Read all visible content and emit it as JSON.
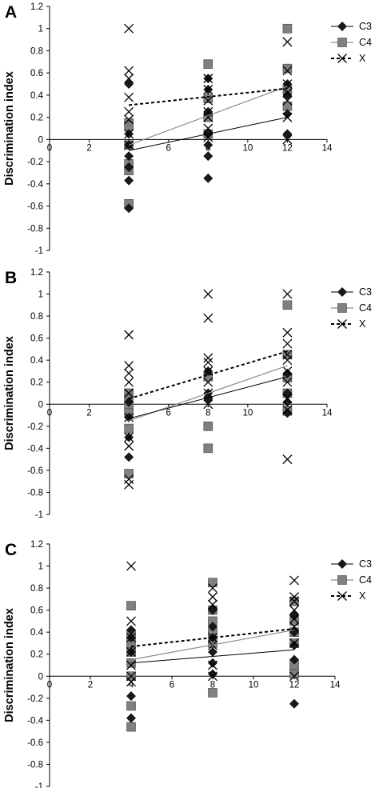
{
  "figure": {
    "ylabel": "Discrimination index",
    "x_ticks": [
      "0",
      "2",
      "4",
      "6",
      "8",
      "10",
      "12",
      "14"
    ],
    "y_ticks": [
      "1.2",
      "1",
      "0.8",
      "0.6",
      "0.4",
      "0.2",
      "0",
      "-0.2",
      "-0.4",
      "-0.6",
      "-0.8",
      "-1"
    ],
    "legend": [
      "C3",
      "C4",
      "X"
    ],
    "colors": {
      "C3": "#1a1a1a",
      "C4": "#808080",
      "X": "#000000",
      "C4_line": "#8c8c8c"
    }
  },
  "chart_data": [
    {
      "type": "scatter",
      "panel": "A",
      "xlim": [
        0,
        14
      ],
      "ylim": [
        -1,
        1.2
      ],
      "series": [
        {
          "name": "C3",
          "marker": "diamond",
          "points": [
            [
              4,
              0.5
            ],
            [
              4,
              -0.15
            ],
            [
              4,
              -0.25
            ],
            [
              4,
              -0.37
            ],
            [
              4,
              -0.62
            ],
            [
              4,
              -0.05
            ],
            [
              4,
              0.05
            ],
            [
              8,
              0.55
            ],
            [
              8,
              0.45
            ],
            [
              8,
              0.25
            ],
            [
              8,
              0.05
            ],
            [
              8,
              -0.05
            ],
            [
              8,
              -0.15
            ],
            [
              8,
              -0.35
            ],
            [
              12,
              0.23
            ],
            [
              12,
              0.05
            ],
            [
              12,
              0.4
            ],
            [
              12,
              0.5
            ]
          ],
          "trend": [
            [
              4,
              -0.1
            ],
            [
              12,
              0.2
            ]
          ]
        },
        {
          "name": "C4",
          "marker": "square",
          "points": [
            [
              4,
              0.15
            ],
            [
              4,
              0.12
            ],
            [
              4,
              -0.05
            ],
            [
              4,
              -0.22
            ],
            [
              4,
              -0.28
            ],
            [
              4,
              -0.58
            ],
            [
              8,
              0.68
            ],
            [
              8,
              0.37
            ],
            [
              8,
              0.2
            ],
            [
              8,
              0.05
            ],
            [
              12,
              1.0
            ],
            [
              12,
              0.64
            ],
            [
              12,
              0.45
            ],
            [
              12,
              0.3
            ]
          ],
          "trend": [
            [
              4,
              -0.05
            ],
            [
              12,
              0.48
            ]
          ]
        },
        {
          "name": "X",
          "marker": "x",
          "points": [
            [
              4,
              1.0
            ],
            [
              4,
              0.62
            ],
            [
              4,
              0.55
            ],
            [
              4,
              0.38
            ],
            [
              4,
              0.25
            ],
            [
              4,
              0.18
            ],
            [
              4,
              0.05
            ],
            [
              4,
              -0.05
            ],
            [
              8,
              0.55
            ],
            [
              8,
              0.45
            ],
            [
              8,
              0.35
            ],
            [
              8,
              0.25
            ],
            [
              8,
              0.2
            ],
            [
              8,
              0.1
            ],
            [
              8,
              0.02
            ],
            [
              12,
              0.88
            ],
            [
              12,
              0.62
            ],
            [
              12,
              0.5
            ],
            [
              12,
              0.42
            ],
            [
              12,
              0.35
            ],
            [
              12,
              0.2
            ],
            [
              12,
              0.0
            ]
          ],
          "trend": [
            [
              4,
              0.31
            ],
            [
              12,
              0.46
            ]
          ]
        }
      ]
    },
    {
      "type": "scatter",
      "panel": "B",
      "xlim": [
        0,
        14
      ],
      "ylim": [
        -1,
        1.2
      ],
      "series": [
        {
          "name": "C3",
          "marker": "diamond",
          "points": [
            [
              4,
              0.02
            ],
            [
              4,
              -0.12
            ],
            [
              4,
              -0.3
            ],
            [
              4,
              -0.48
            ],
            [
              8,
              0.3
            ],
            [
              8,
              0.1
            ],
            [
              8,
              0.05
            ],
            [
              12,
              0.28
            ],
            [
              12,
              0.1
            ],
            [
              12,
              0.02
            ],
            [
              12,
              -0.08
            ]
          ],
          "trend": [
            [
              4,
              -0.13
            ],
            [
              12,
              0.25
            ]
          ]
        },
        {
          "name": "C4",
          "marker": "square",
          "points": [
            [
              4,
              0.1
            ],
            [
              4,
              0.05
            ],
            [
              4,
              -0.02
            ],
            [
              4,
              -0.08
            ],
            [
              4,
              -0.22
            ],
            [
              4,
              -0.63
            ],
            [
              8,
              0.25
            ],
            [
              8,
              -0.2
            ],
            [
              8,
              -0.4
            ],
            [
              12,
              0.9
            ],
            [
              12,
              0.45
            ],
            [
              12,
              0.24
            ],
            [
              12,
              0.1
            ],
            [
              12,
              -0.06
            ]
          ],
          "trend": [
            [
              4,
              -0.15
            ],
            [
              12,
              0.35
            ]
          ]
        },
        {
          "name": "X",
          "marker": "x",
          "points": [
            [
              4,
              0.63
            ],
            [
              4,
              0.35
            ],
            [
              4,
              0.28
            ],
            [
              4,
              0.2
            ],
            [
              4,
              0.1
            ],
            [
              4,
              -0.12
            ],
            [
              4,
              -0.3
            ],
            [
              4,
              -0.38
            ],
            [
              4,
              -0.68
            ],
            [
              4,
              -0.73
            ],
            [
              8,
              1.0
            ],
            [
              8,
              0.78
            ],
            [
              8,
              0.42
            ],
            [
              8,
              0.38
            ],
            [
              8,
              0.3
            ],
            [
              8,
              0.2
            ],
            [
              8,
              0.1
            ],
            [
              8,
              0.0
            ],
            [
              12,
              1.0
            ],
            [
              12,
              0.65
            ],
            [
              12,
              0.55
            ],
            [
              12,
              0.45
            ],
            [
              12,
              0.4
            ],
            [
              12,
              0.3
            ],
            [
              12,
              0.2
            ],
            [
              12,
              0.05
            ],
            [
              12,
              -0.05
            ],
            [
              12,
              -0.5
            ]
          ],
          "trend": [
            [
              4,
              0.05
            ],
            [
              12,
              0.48
            ]
          ]
        }
      ]
    },
    {
      "type": "scatter",
      "panel": "C",
      "xlim": [
        0,
        14
      ],
      "ylim": [
        -1,
        1.2
      ],
      "series": [
        {
          "name": "C3",
          "marker": "diamond",
          "points": [
            [
              4,
              0.42
            ],
            [
              4,
              0.35
            ],
            [
              4,
              0.22
            ],
            [
              4,
              -0.18
            ],
            [
              4,
              -0.38
            ],
            [
              8,
              0.6
            ],
            [
              8,
              0.45
            ],
            [
              8,
              0.35
            ],
            [
              8,
              0.22
            ],
            [
              8,
              0.12
            ],
            [
              8,
              0.02
            ],
            [
              12,
              0.55
            ],
            [
              12,
              0.4
            ],
            [
              12,
              0.28
            ],
            [
              12,
              0.15
            ],
            [
              12,
              -0.25
            ]
          ],
          "trend": [
            [
              4,
              0.12
            ],
            [
              12,
              0.24
            ]
          ]
        },
        {
          "name": "C4",
          "marker": "square",
          "points": [
            [
              4,
              0.64
            ],
            [
              4,
              0.38
            ],
            [
              4,
              0.3
            ],
            [
              4,
              0.22
            ],
            [
              4,
              0.12
            ],
            [
              4,
              0.0
            ],
            [
              4,
              -0.27
            ],
            [
              4,
              -0.46
            ],
            [
              8,
              0.85
            ],
            [
              8,
              0.6
            ],
            [
              8,
              0.5
            ],
            [
              8,
              0.4
            ],
            [
              8,
              0.3
            ],
            [
              8,
              -0.15
            ],
            [
              12,
              0.68
            ],
            [
              12,
              0.5
            ],
            [
              12,
              0.4
            ],
            [
              12,
              0.3
            ],
            [
              12,
              0.1
            ],
            [
              12,
              0.02
            ]
          ],
          "trend": [
            [
              4,
              0.15
            ],
            [
              12,
              0.42
            ]
          ]
        },
        {
          "name": "X",
          "marker": "x",
          "points": [
            [
              4,
              1.0
            ],
            [
              4,
              0.5
            ],
            [
              4,
              0.35
            ],
            [
              4,
              0.22
            ],
            [
              4,
              0.1
            ],
            [
              4,
              0.0
            ],
            [
              4,
              -0.05
            ],
            [
              8,
              0.8
            ],
            [
              8,
              0.72
            ],
            [
              8,
              0.65
            ],
            [
              8,
              0.35
            ],
            [
              8,
              0.28
            ],
            [
              8,
              0.1
            ],
            [
              8,
              0.0
            ],
            [
              12,
              0.87
            ],
            [
              12,
              0.72
            ],
            [
              12,
              0.68
            ],
            [
              12,
              0.6
            ],
            [
              12,
              0.52
            ],
            [
              12,
              0.45
            ],
            [
              12,
              0.3
            ],
            [
              12,
              0.0
            ]
          ],
          "trend": [
            [
              4,
              0.27
            ],
            [
              12,
              0.43
            ]
          ]
        }
      ]
    }
  ]
}
